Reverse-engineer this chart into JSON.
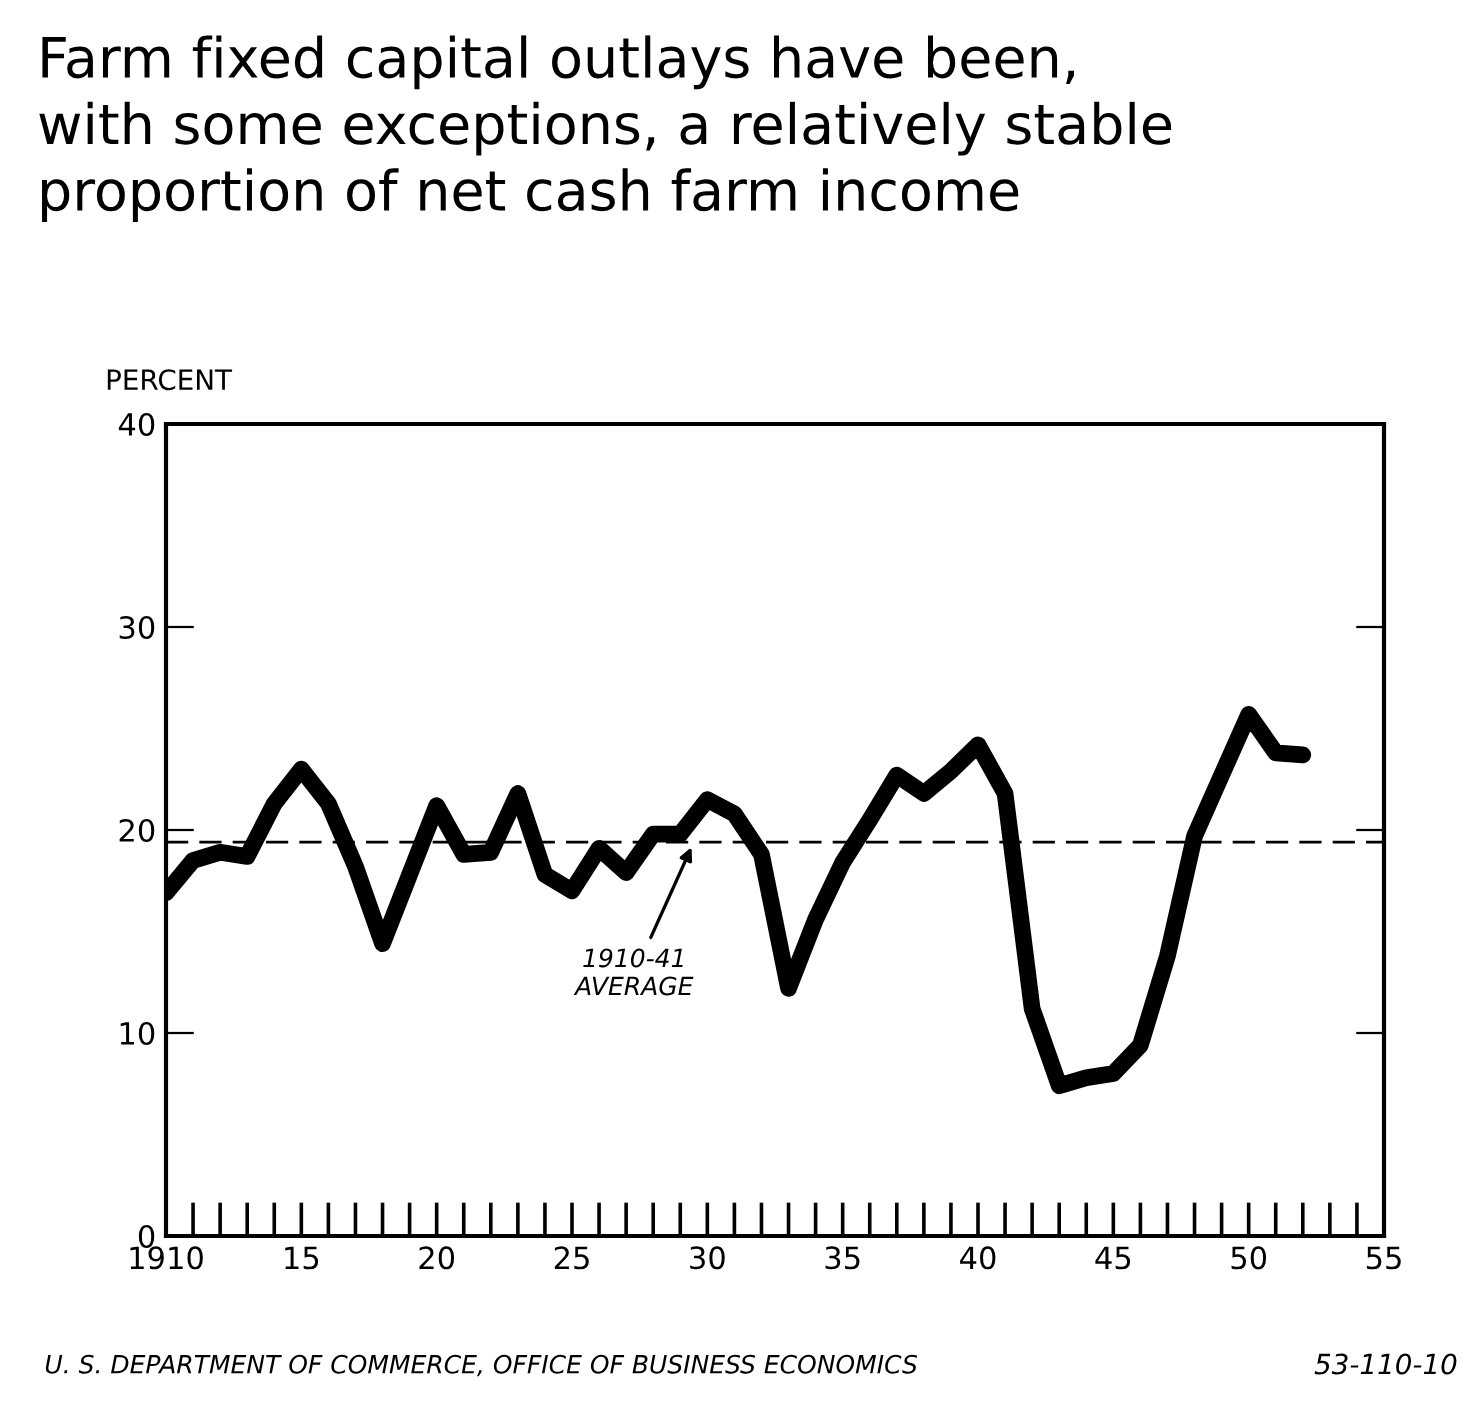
{
  "chart_data": {
    "type": "line",
    "title": "Farm fixed capital outlays have been,\nwith some exceptions, a relatively stable\nproportion of net cash farm income",
    "ylabel": "PERCENT",
    "x": [
      1910,
      1911,
      1912,
      1913,
      1914,
      1915,
      1916,
      1917,
      1918,
      1919,
      1920,
      1921,
      1922,
      1923,
      1924,
      1925,
      1926,
      1927,
      1928,
      1929,
      1930,
      1931,
      1932,
      1933,
      1934,
      1935,
      1936,
      1937,
      1938,
      1939,
      1940,
      1941,
      1942,
      1943,
      1944,
      1945,
      1946,
      1947,
      1948,
      1949,
      1950,
      1951,
      1952
    ],
    "series": [
      {
        "color": "#000000",
        "values": [
          16.9,
          18.5,
          18.9,
          18.7,
          21.3,
          23.0,
          21.3,
          18.2,
          14.4,
          17.8,
          21.2,
          18.8,
          18.9,
          21.8,
          17.8,
          17.0,
          19.1,
          17.9,
          19.8,
          19.8,
          21.5,
          20.8,
          18.8,
          12.2,
          15.6,
          18.4,
          20.5,
          22.7,
          21.8,
          22.9,
          24.2,
          21.8,
          11.2,
          7.4,
          7.8,
          8.0,
          9.4,
          13.8,
          19.7,
          22.7,
          25.7,
          23.8,
          23.7
        ]
      }
    ],
    "xlim": [
      1910,
      1955
    ],
    "ylim": [
      0,
      40
    ],
    "xticks": [
      1910,
      {
        "value": 1915,
        "label": "15"
      },
      {
        "value": 1920,
        "label": "20"
      },
      {
        "value": 1925,
        "label": "25"
      },
      {
        "value": 1930,
        "label": "30"
      },
      {
        "value": 1935,
        "label": "35"
      },
      {
        "value": 1940,
        "label": "40"
      },
      {
        "value": 1945,
        "label": "45"
      },
      {
        "value": 1950,
        "label": "50"
      },
      {
        "value": 1955,
        "label": "55"
      }
    ],
    "yticks": [
      0,
      10,
      20,
      30,
      40
    ],
    "ref_lines": [
      {
        "axis": "y",
        "value": 19.4,
        "label": "1910-41\nAVERAGE",
        "line_style": "dashed",
        "color": "#000000"
      }
    ],
    "annotations": [
      "U. S. DEPARTMENT OF COMMERCE, OFFICE OF BUSINESS ECONOMICS",
      "53-110-10"
    ],
    "grid": false,
    "legend": false,
    "marker": "none",
    "line_style": "solid"
  }
}
